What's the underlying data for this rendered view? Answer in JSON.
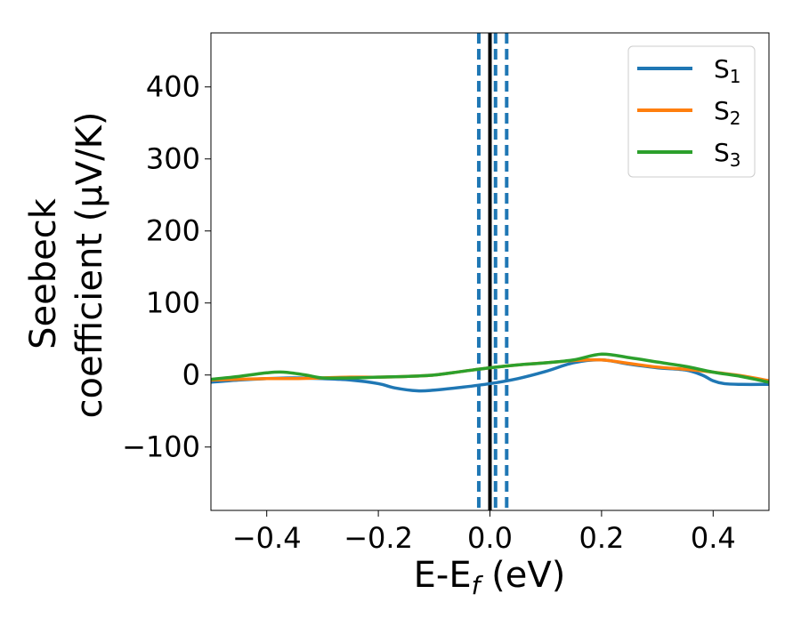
{
  "chart_data": {
    "type": "line",
    "xlabel": "E-E",
    "xlabel_sub": "f",
    "xlabel_tail": " (eV)",
    "ylabel_line1": "Seebeck",
    "ylabel_line2": "coefficient  (μV/K)",
    "xlim": [
      -0.5,
      0.5
    ],
    "ylim": [
      -188,
      475
    ],
    "x_ticks": [
      -0.4,
      -0.2,
      0.0,
      0.2,
      0.4
    ],
    "x_tick_labels": [
      "−0.4",
      "−0.2",
      "0.0",
      "0.2",
      "0.4"
    ],
    "y_ticks": [
      -100,
      0,
      100,
      200,
      300,
      400
    ],
    "y_tick_labels": [
      "−100",
      "0",
      "100",
      "200",
      "300",
      "400"
    ],
    "grid": false,
    "legend_position": "top-right",
    "vertical_lines": [
      {
        "x": 0.0,
        "style": "solid",
        "color": "#000000"
      },
      {
        "x": -0.02,
        "style": "dashed",
        "color": "#1f77b4"
      },
      {
        "x": 0.01,
        "style": "dashed",
        "color": "#1f77b4"
      },
      {
        "x": 0.03,
        "style": "dashed",
        "color": "#1f77b4"
      }
    ],
    "series": [
      {
        "name": "S",
        "subscript": "1",
        "color": "#1f77b4",
        "x": [
          -0.5,
          -0.45,
          -0.4,
          -0.35,
          -0.3,
          -0.25,
          -0.2,
          -0.17,
          -0.13,
          -0.1,
          -0.05,
          0.0,
          0.05,
          0.1,
          0.15,
          0.2,
          0.25,
          0.3,
          0.35,
          0.38,
          0.4,
          0.42,
          0.45,
          0.5
        ],
        "y": [
          -10,
          -7,
          -5,
          -4,
          -5,
          -7,
          -12,
          -18,
          -22,
          -21,
          -17,
          -12,
          -5,
          5,
          17,
          21,
          15,
          10,
          7,
          0,
          -8,
          -12,
          -13,
          -13
        ]
      },
      {
        "name": "S",
        "subscript": "2",
        "color": "#ff7f0e",
        "x": [
          -0.5,
          -0.45,
          -0.4,
          -0.35,
          -0.3,
          -0.25,
          -0.2,
          -0.15,
          -0.1,
          -0.05,
          0.0,
          0.05,
          0.1,
          0.15,
          0.2,
          0.25,
          0.3,
          0.35,
          0.4,
          0.45,
          0.5
        ],
        "y": [
          -7,
          -6,
          -5,
          -5,
          -4,
          -3,
          -3,
          -2,
          0,
          5,
          10,
          14,
          17,
          20,
          21,
          16,
          11,
          8,
          4,
          -1,
          -8
        ]
      },
      {
        "name": "S",
        "subscript": "3",
        "color": "#2ca02c",
        "x": [
          -0.5,
          -0.45,
          -0.4,
          -0.37,
          -0.33,
          -0.3,
          -0.25,
          -0.2,
          -0.15,
          -0.1,
          -0.05,
          0.0,
          0.05,
          0.1,
          0.15,
          0.2,
          0.25,
          0.3,
          0.35,
          0.4,
          0.45,
          0.5
        ],
        "y": [
          -6,
          -2,
          3,
          4,
          0,
          -4,
          -4,
          -3,
          -2,
          0,
          5,
          10,
          14,
          17,
          21,
          29,
          24,
          18,
          12,
          4,
          -2,
          -10
        ]
      }
    ]
  }
}
